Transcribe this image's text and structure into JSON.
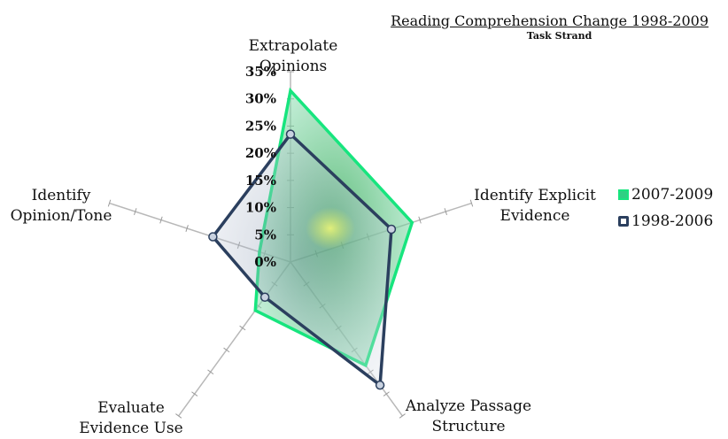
{
  "chart_data": {
    "type": "radar",
    "title": "Reading Comprehension Change 1998-2009",
    "subtitle": "Task Strand",
    "axes": [
      "Extrapolate Opinions",
      "Identify Explicit Evidence",
      "Analyze Passage Structure",
      "Evaluate Evidence Use",
      "Identify Opinion/Tone"
    ],
    "axis_label_lines": [
      [
        "Extrapolate",
        "Opinions"
      ],
      [
        "Identify Explicit",
        "Evidence"
      ],
      [
        "Analyze Passage",
        "Structure"
      ],
      [
        "Evaluate",
        "Evidence Use"
      ],
      [
        "Identify",
        "Opinion/Tone"
      ]
    ],
    "rlim": [
      0,
      35
    ],
    "ticks": [
      "0%",
      "5%",
      "10%",
      "15%",
      "20%",
      "25%",
      "30%",
      "35%"
    ],
    "series": [
      {
        "name": "2007-2009",
        "values": [
          31.5,
          23.5,
          23.5,
          11,
          6
        ],
        "color": "#17e57e"
      },
      {
        "name": "1998-2006",
        "values": [
          23.5,
          19.5,
          28,
          8,
          15
        ],
        "color": "#2b3f5e"
      }
    ],
    "legend_position": "right",
    "grid": false
  }
}
